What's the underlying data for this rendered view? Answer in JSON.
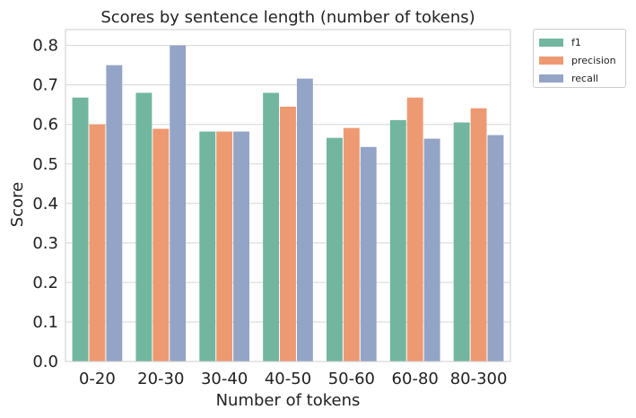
{
  "chart_data": {
    "type": "bar",
    "title": "Scores by sentence length (number of tokens)",
    "xlabel": "Number of tokens",
    "ylabel": "Score",
    "categories": [
      "0-20",
      "20-30",
      "30-40",
      "40-50",
      "50-60",
      "60-80",
      "80-300"
    ],
    "series": [
      {
        "name": "f1",
        "color": "#72b69f",
        "values": [
          0.668,
          0.68,
          0.582,
          0.68,
          0.566,
          0.611,
          0.605
        ]
      },
      {
        "name": "precision",
        "color": "#ed9a73",
        "values": [
          0.6,
          0.589,
          0.582,
          0.645,
          0.591,
          0.668,
          0.641
        ]
      },
      {
        "name": "recall",
        "color": "#94a4c6",
        "values": [
          0.75,
          0.8,
          0.582,
          0.716,
          0.543,
          0.564,
          0.573
        ]
      }
    ],
    "ylim": [
      0,
      0.84
    ],
    "yticks": [
      "0.0",
      "0.1",
      "0.2",
      "0.3",
      "0.4",
      "0.5",
      "0.6",
      "0.7",
      "0.8"
    ],
    "grid": "horizontal",
    "legend_position": "outside-top-right"
  }
}
